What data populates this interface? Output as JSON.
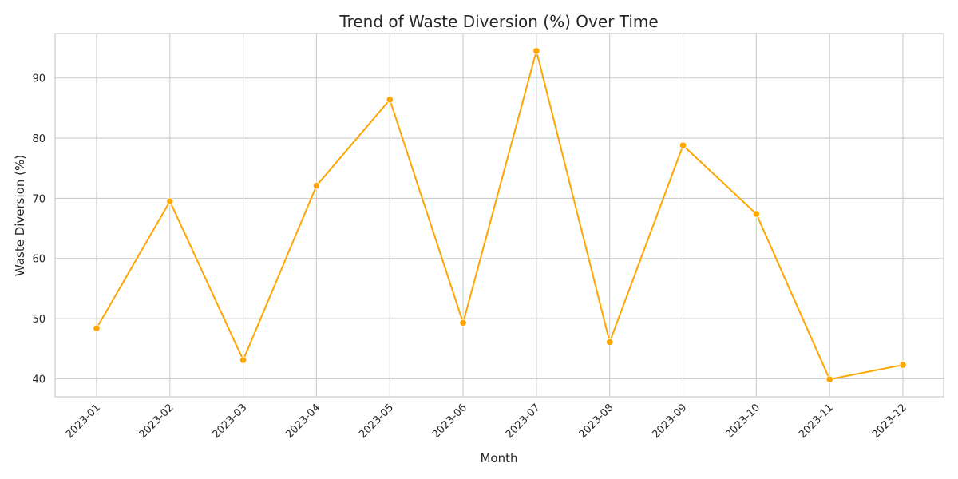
{
  "chart_data": {
    "type": "line",
    "title": "Trend of Waste Diversion (%) Over Time",
    "xlabel": "Month",
    "ylabel": "Waste Diversion (%)",
    "categories": [
      "2023-01",
      "2023-02",
      "2023-03",
      "2023-04",
      "2023-05",
      "2023-06",
      "2023-07",
      "2023-08",
      "2023-09",
      "2023-10",
      "2023-11",
      "2023-12"
    ],
    "series": [
      {
        "values": [
          48.4,
          69.5,
          43.1,
          72.1,
          86.4,
          49.3,
          94.5,
          46.1,
          78.8,
          67.4,
          39.9,
          42.3
        ]
      }
    ],
    "yticks": [
      40,
      50,
      60,
      70,
      80,
      90
    ],
    "ylim": [
      37.0,
      97.4
    ],
    "grid": true,
    "line_color": "#FFA500"
  }
}
